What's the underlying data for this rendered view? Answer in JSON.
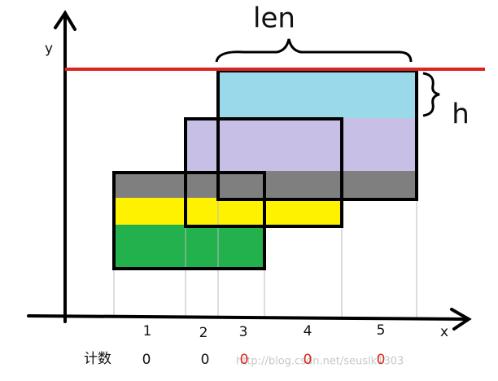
{
  "axes": {
    "y_label": "y",
    "x_label": "x"
  },
  "annotations": {
    "len": "len",
    "h": "h"
  },
  "segments": [
    "1",
    "2",
    "3",
    "4",
    "5"
  ],
  "count_row": {
    "label": "计数",
    "counts": [
      0,
      0,
      0,
      0,
      0
    ]
  },
  "watermark": "http://blog.csdn.net/seuslk1303"
}
